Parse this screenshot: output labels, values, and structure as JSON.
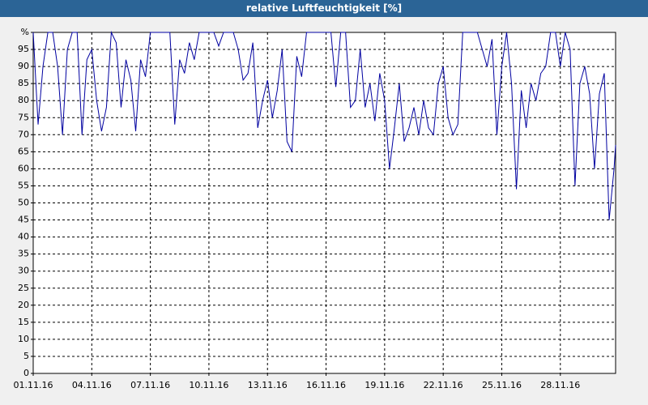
{
  "chart_data": {
    "type": "line",
    "title": "relative Luftfeuchtigkeit [%]",
    "x": [
      0,
      0.25,
      0.5,
      0.75,
      1,
      1.25,
      1.5,
      1.75,
      2,
      2.25,
      2.5,
      2.75,
      3,
      3.25,
      3.5,
      3.75,
      4,
      4.25,
      4.5,
      4.75,
      5,
      5.25,
      5.5,
      5.75,
      6,
      6.25,
      6.5,
      6.75,
      7,
      7.25,
      7.5,
      7.75,
      8,
      8.25,
      8.5,
      8.75,
      9,
      9.25,
      9.5,
      9.75,
      10,
      10.25,
      10.5,
      10.75,
      11,
      11.25,
      11.5,
      11.75,
      12,
      12.25,
      12.5,
      12.75,
      13,
      13.25,
      13.5,
      13.75,
      14,
      14.25,
      14.5,
      14.75,
      15,
      15.25,
      15.5,
      15.75,
      16,
      16.25,
      16.5,
      16.75,
      17,
      17.25,
      17.5,
      17.75,
      18,
      18.25,
      18.5,
      18.75,
      19,
      19.25,
      19.5,
      19.75,
      20,
      20.25,
      20.5,
      20.75,
      21,
      21.25,
      21.5,
      21.75,
      22,
      22.25,
      22.5,
      22.75,
      23,
      23.25,
      23.5,
      23.75,
      24,
      24.25,
      24.5,
      24.75,
      25,
      25.25,
      25.5,
      25.75,
      26,
      26.25,
      26.5,
      26.75,
      27,
      27.25,
      27.5,
      27.75,
      28,
      28.25,
      28.5,
      28.75,
      29,
      29.25,
      29.5,
      29.75,
      29.83
    ],
    "series": [
      {
        "color": "#0000a0",
        "values": [
          100,
          73,
          90,
          100,
          100,
          90,
          70,
          95,
          100,
          100,
          70,
          92,
          95,
          80,
          71,
          78,
          100,
          97,
          78,
          92,
          86,
          71,
          92,
          87,
          100,
          100,
          100,
          100,
          100,
          73,
          92,
          88,
          97,
          92,
          100,
          100,
          100,
          100,
          96,
          100,
          100,
          100,
          95,
          86,
          88,
          97,
          72,
          80,
          86,
          75,
          83,
          95,
          68,
          65,
          93,
          87,
          100,
          100,
          100,
          100,
          100,
          100,
          84,
          100,
          100,
          78,
          80,
          95,
          78,
          85,
          74,
          88,
          80,
          60,
          72,
          85,
          68,
          72,
          78,
          70,
          80,
          72,
          70,
          85,
          90,
          75,
          70,
          73,
          100,
          100,
          100,
          100,
          95,
          90,
          98,
          70,
          90,
          100,
          85,
          54,
          83,
          72,
          85,
          80,
          88,
          90,
          100,
          100,
          90,
          100,
          95,
          55,
          85,
          90,
          82,
          60,
          82,
          88,
          45,
          60,
          67
        ]
      }
    ],
    "xlim": [
      0,
      29.83
    ],
    "xticks": [
      {
        "value": 0,
        "label": "01.11.16"
      },
      {
        "value": 3,
        "label": "04.11.16"
      },
      {
        "value": 6,
        "label": "07.11.16"
      },
      {
        "value": 9,
        "label": "10.11.16"
      },
      {
        "value": 12,
        "label": "13.11.16"
      },
      {
        "value": 15,
        "label": "16.11.16"
      },
      {
        "value": 18,
        "label": "19.11.16"
      },
      {
        "value": 21,
        "label": "22.11.16"
      },
      {
        "value": 24,
        "label": "25.11.16"
      },
      {
        "value": 27,
        "label": "28.11.16"
      }
    ],
    "ylim": [
      0,
      100
    ],
    "yticks": [
      0,
      5,
      10,
      15,
      20,
      25,
      30,
      35,
      40,
      45,
      50,
      55,
      60,
      65,
      70,
      75,
      80,
      85,
      90,
      95,
      {
        "value": 100,
        "label": "%"
      }
    ],
    "grid": true
  }
}
